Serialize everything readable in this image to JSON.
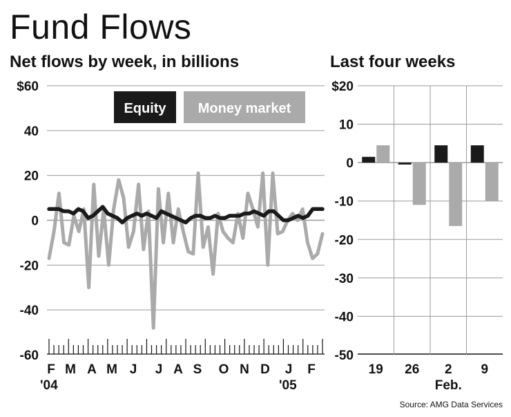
{
  "title": "Fund Flows",
  "source": "Source: AMG Data Services",
  "colors": {
    "equity": "#1a1a1a",
    "money_market": "#aaaaaa",
    "grid": "#999999"
  },
  "chart_data": [
    {
      "type": "line",
      "title": "Net flows by week, in billions",
      "ylim": [
        -60,
        60
      ],
      "y_ticks": [
        "$60",
        "40",
        "20",
        "0",
        "-20",
        "-40",
        "-60"
      ],
      "y_tick_values": [
        60,
        40,
        20,
        0,
        -20,
        -40,
        -60
      ],
      "month_labels": [
        "F",
        "M",
        "A",
        "M",
        "J",
        "J",
        "A",
        "S",
        "O",
        "N",
        "D",
        "J",
        "F"
      ],
      "year_labels": [
        "'04",
        "'05"
      ],
      "legend": [
        "Equity",
        "Money market"
      ],
      "series": [
        {
          "name": "Equity",
          "values": [
            5,
            5,
            5,
            4,
            4,
            3,
            5,
            4,
            1,
            2,
            4,
            6,
            3,
            2,
            1,
            -1,
            1,
            2,
            3,
            2,
            3,
            2,
            1,
            4,
            3,
            2,
            1,
            0,
            -1,
            1,
            2,
            2,
            1,
            1,
            2,
            1,
            1,
            2,
            2,
            2,
            3,
            3,
            4,
            3,
            2,
            4,
            4,
            2,
            0,
            0,
            1,
            2,
            1,
            2,
            5,
            5,
            5
          ]
        },
        {
          "name": "Money market",
          "values": [
            -17,
            -5,
            12,
            -10,
            -11,
            2,
            -5,
            5,
            -30,
            16,
            -16,
            5,
            -20,
            5,
            18,
            10,
            -12,
            -5,
            16,
            -13,
            4,
            -48,
            14,
            -10,
            12,
            -10,
            5,
            -5,
            -14,
            -15,
            21,
            -12,
            -3,
            -24,
            3,
            -5,
            -8,
            -10,
            3,
            -8,
            12,
            5,
            -3,
            21,
            -20,
            21,
            -6,
            -5,
            0,
            3,
            0,
            5,
            -10,
            -17,
            -15,
            -6
          ]
        }
      ]
    },
    {
      "type": "bar",
      "title": "Last four weeks",
      "ylim": [
        -50,
        20
      ],
      "y_ticks": [
        "$20",
        "10",
        "0",
        "-10",
        "-20",
        "-30",
        "-40",
        "-50"
      ],
      "y_tick_values": [
        20,
        10,
        0,
        -10,
        -20,
        -30,
        -40,
        -50
      ],
      "categories": [
        "19",
        "26",
        "2",
        "9"
      ],
      "month_label": "Feb.",
      "series": [
        {
          "name": "Equity",
          "values": [
            1.5,
            -0.5,
            4.5,
            4.5
          ]
        },
        {
          "name": "Money market",
          "values": [
            4.5,
            -11,
            -16.5,
            -10
          ]
        }
      ]
    }
  ]
}
